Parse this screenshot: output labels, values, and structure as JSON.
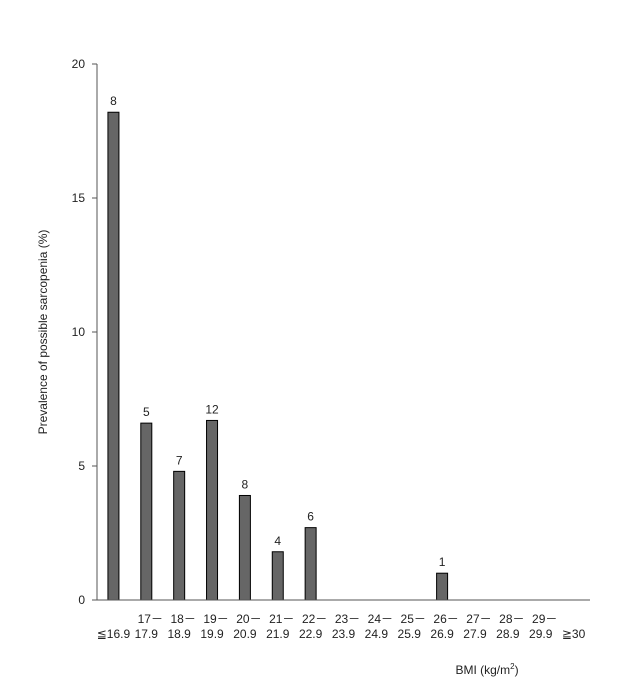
{
  "chart_data": {
    "type": "bar",
    "categories": [
      [
        "≦16.9"
      ],
      [
        "17－",
        "17.9"
      ],
      [
        "18－",
        "18.9"
      ],
      [
        "19－",
        "19.9"
      ],
      [
        "20－",
        "20.9"
      ],
      [
        "21－",
        "21.9"
      ],
      [
        "22－",
        "22.9"
      ],
      [
        "23－",
        "23.9"
      ],
      [
        "24－",
        "24.9"
      ],
      [
        "25－",
        "25.9"
      ],
      [
        "26－",
        "26.9"
      ],
      [
        "27－",
        "27.9"
      ],
      [
        "28－",
        "28.9"
      ],
      [
        "29－",
        "29.9"
      ],
      [
        "≧30"
      ]
    ],
    "values": [
      18.2,
      6.6,
      4.8,
      6.7,
      3.9,
      1.8,
      2.7,
      0,
      0,
      0,
      1.0,
      0,
      0,
      0,
      0
    ],
    "data_labels": [
      "8",
      "5",
      "7",
      "12",
      "8",
      "4",
      "6",
      "",
      "",
      "",
      "1",
      "",
      "",
      "",
      ""
    ],
    "ylabel": "Prevalence of possible sarcopenia (%)",
    "xlabel": "BMI (kg/m",
    "xlabel_superscript": "2",
    "xlabel_suffix": ")",
    "ylim": [
      0,
      20
    ],
    "yticks": [
      0,
      5,
      10,
      15,
      20
    ],
    "grid": false,
    "bar_color": "#666666",
    "bar_stroke": "#000000"
  }
}
